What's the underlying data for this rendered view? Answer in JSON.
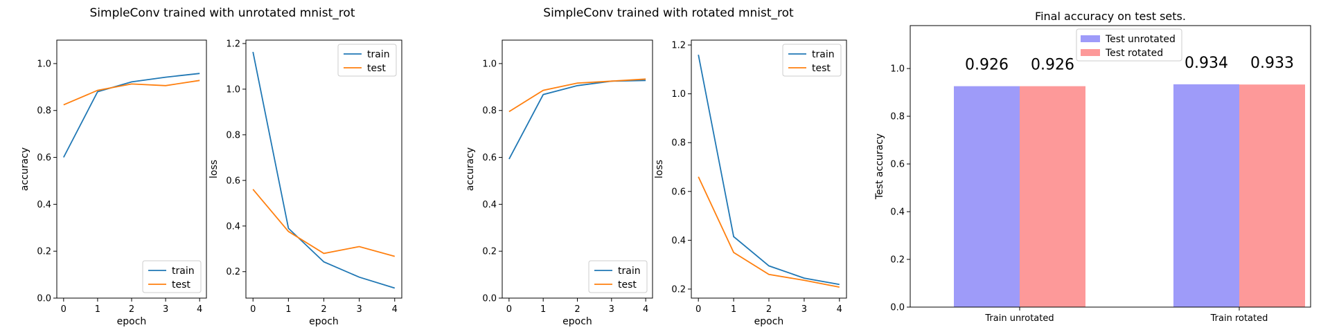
{
  "figure_titles": [
    "SimpleConv trained with unrotated mnist_rot",
    "SimpleConv trained with rotated mnist_rot"
  ],
  "colors": {
    "train": "#1f77b4",
    "test": "#ff7f0e",
    "test_unrotated": "#9e9bf9",
    "test_rotated": "#fd9999"
  },
  "chart_data": [
    {
      "type": "line",
      "group_title": "SimpleConv trained with unrotated mnist_rot",
      "xlabel": "epoch",
      "ylabel": "accuracy",
      "x": [
        0,
        1,
        2,
        3,
        4
      ],
      "xlim": [
        -0.2,
        4.2
      ],
      "ylim": [
        0.0,
        1.1
      ],
      "xticks": [
        0,
        1,
        2,
        3,
        4
      ],
      "yticks": [
        0.0,
        0.2,
        0.4,
        0.6,
        0.8,
        1.0
      ],
      "legend": "lower-right",
      "series": [
        {
          "name": "train",
          "color": "#1f77b4",
          "values": [
            0.6,
            0.88,
            0.922,
            0.942,
            0.958
          ]
        },
        {
          "name": "test",
          "color": "#ff7f0e",
          "values": [
            0.824,
            0.886,
            0.913,
            0.906,
            0.928
          ]
        }
      ]
    },
    {
      "type": "line",
      "group_title": "SimpleConv trained with unrotated mnist_rot",
      "xlabel": "epoch",
      "ylabel": "loss",
      "x": [
        0,
        1,
        2,
        3,
        4
      ],
      "xlim": [
        -0.2,
        4.2
      ],
      "ylim": [
        0.084,
        1.215
      ],
      "xticks": [
        0,
        1,
        2,
        3,
        4
      ],
      "yticks": [
        0.2,
        0.4,
        0.6,
        0.8,
        1.0,
        1.2
      ],
      "legend": "upper-right",
      "series": [
        {
          "name": "train",
          "color": "#1f77b4",
          "values": [
            1.163,
            0.39,
            0.243,
            0.176,
            0.128
          ]
        },
        {
          "name": "test",
          "color": "#ff7f0e",
          "values": [
            0.561,
            0.376,
            0.28,
            0.31,
            0.267
          ]
        }
      ]
    },
    {
      "type": "line",
      "group_title": "SimpleConv trained with rotated mnist_rot",
      "xlabel": "epoch",
      "ylabel": "accuracy",
      "x": [
        0,
        1,
        2,
        3,
        4
      ],
      "xlim": [
        -0.2,
        4.2
      ],
      "ylim": [
        0.0,
        1.1
      ],
      "xticks": [
        0,
        1,
        2,
        3,
        4
      ],
      "yticks": [
        0.0,
        0.2,
        0.4,
        0.6,
        0.8,
        1.0
      ],
      "legend": "lower-right",
      "series": [
        {
          "name": "train",
          "color": "#1f77b4",
          "values": [
            0.593,
            0.868,
            0.906,
            0.925,
            0.928
          ]
        },
        {
          "name": "test",
          "color": "#ff7f0e",
          "values": [
            0.795,
            0.886,
            0.917,
            0.925,
            0.934
          ]
        }
      ]
    },
    {
      "type": "line",
      "group_title": "SimpleConv trained with rotated mnist_rot",
      "xlabel": "epoch",
      "ylabel": "loss",
      "x": [
        0,
        1,
        2,
        3,
        4
      ],
      "xlim": [
        -0.2,
        4.2
      ],
      "ylim": [
        0.163,
        1.22
      ],
      "xticks": [
        0,
        1,
        2,
        3,
        4
      ],
      "yticks": [
        0.2,
        0.4,
        0.6,
        0.8,
        1.0,
        1.2
      ],
      "legend": "upper-right",
      "series": [
        {
          "name": "train",
          "color": "#1f77b4",
          "values": [
            1.16,
            0.415,
            0.295,
            0.245,
            0.219
          ]
        },
        {
          "name": "test",
          "color": "#ff7f0e",
          "values": [
            0.66,
            0.35,
            0.26,
            0.236,
            0.208
          ]
        }
      ]
    },
    {
      "type": "bar",
      "title": "Final accuracy on test sets.",
      "xlabel": "",
      "ylabel": "Test accuracy",
      "categories": [
        "Train unrotated",
        "Train rotated"
      ],
      "ylim": [
        0.0,
        1.18
      ],
      "yticks": [
        0.0,
        0.2,
        0.4,
        0.6,
        0.8,
        1.0
      ],
      "legend": "top-center",
      "series": [
        {
          "name": "Test unrotated",
          "color": "#9e9bf9",
          "values": [
            0.926,
            0.934
          ],
          "labels": [
            "0.926",
            "0.934"
          ]
        },
        {
          "name": "Test rotated",
          "color": "#fd9999",
          "values": [
            0.926,
            0.933
          ],
          "labels": [
            "0.926",
            "0.933"
          ]
        }
      ]
    }
  ]
}
